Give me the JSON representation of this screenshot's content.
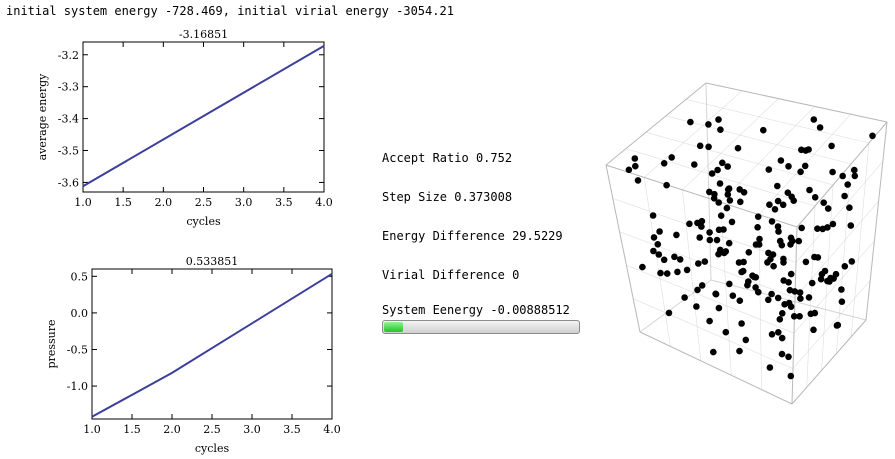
{
  "header": {
    "text": "initial system energy -728.469, initial virial energy -3054.21"
  },
  "stats": {
    "accept_ratio_label": "Accept Ratio",
    "accept_ratio_value": "0.752",
    "step_size_label": "Step Size",
    "step_size_value": "0.373008",
    "energy_diff_label": "Energy Difference",
    "energy_diff_value": "29.5229",
    "virial_diff_label": "Virial Difference",
    "virial_diff_value": "0",
    "system_energy_label": "System Eenergy",
    "system_energy_value": "-0.00888512"
  },
  "progress": {
    "fraction": 0.1,
    "fill_color": "#22c422"
  },
  "chart_data": [
    {
      "type": "line",
      "title": "-3.16851",
      "xlabel": "cycles",
      "ylabel": "average energy",
      "x": [
        1.0,
        4.0
      ],
      "series": [
        {
          "values": [
            -3.612,
            -3.172
          ]
        }
      ],
      "xlim": [
        1.0,
        4.0
      ],
      "ylim": [
        -3.63,
        -3.16
      ],
      "xticks": [
        "1.0",
        "1.5",
        "2.0",
        "2.5",
        "3.0",
        "3.5",
        "4.0"
      ],
      "yticks": [
        "-3.2",
        "-3.3",
        "-3.4",
        "-3.5",
        "-3.6"
      ],
      "line_color": "#3d3f9a"
    },
    {
      "type": "line",
      "title": "0.533851",
      "xlabel": "cycles",
      "ylabel": "pressure",
      "x": [
        1.0,
        2.0,
        4.0
      ],
      "series": [
        {
          "values": [
            -1.42,
            -0.82,
            0.534
          ]
        }
      ],
      "xlim": [
        1.0,
        4.0
      ],
      "ylim": [
        -1.45,
        0.6
      ],
      "xticks": [
        "1.0",
        "1.5",
        "2.0",
        "2.5",
        "3.0",
        "3.5",
        "4.0"
      ],
      "yticks": [
        "0.5",
        "0.0",
        "-0.5",
        "-1.0"
      ],
      "line_color": "#3d3f9a"
    }
  ],
  "particle_box": {
    "particle_count": 200,
    "particle_color": "#000000",
    "edge_color": "#b8b8b8"
  }
}
